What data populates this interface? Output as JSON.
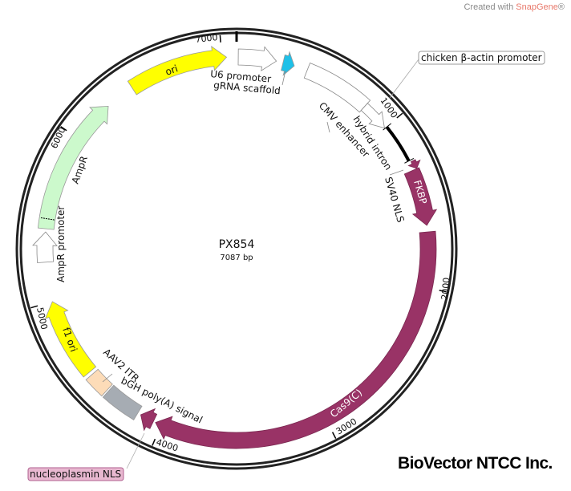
{
  "header": {
    "credit_prefix": "Created with ",
    "credit_brand": "SnapGene",
    "credit_suffix": "®"
  },
  "plasmid": {
    "name": "PX854",
    "length_label": "7087 bp",
    "length_bp": 7087
  },
  "ticks": [
    {
      "bp": 1000,
      "label": "1000"
    },
    {
      "bp": 2000,
      "label": "2000"
    },
    {
      "bp": 3000,
      "label": "3000"
    },
    {
      "bp": 4000,
      "label": "4000"
    },
    {
      "bp": 5000,
      "label": "5000"
    },
    {
      "bp": 6000,
      "label": "6000"
    },
    {
      "bp": 7000,
      "label": "7000"
    }
  ],
  "features": [
    {
      "id": "ori",
      "label": "ori",
      "start": 6437,
      "end": 7028,
      "type": "arrow",
      "color": "#ffff00"
    },
    {
      "id": "u6",
      "label": "U6 promoter",
      "start": 10,
      "end": 236,
      "type": "arrow",
      "color": "#ffffff"
    },
    {
      "id": "grna",
      "label": "gRNA scaffold",
      "start": 276,
      "end": 345,
      "type": "arrow",
      "color": "#1ec0e8"
    },
    {
      "id": "cmv",
      "label": "CMV enhancer",
      "start": 425,
      "end": 827,
      "type": "box",
      "color": "#ffffff"
    },
    {
      "id": "cba",
      "label": "chicken β-actin promoter",
      "start": 827,
      "end": 1000,
      "type": "arrow",
      "color": "#ffffff"
    },
    {
      "id": "intron",
      "label": "hybrid intron",
      "start": 1004,
      "end": 1240,
      "type": "line",
      "color": "#000000"
    },
    {
      "id": "sv40",
      "label": "SV40 NLS",
      "start": 1250,
      "end": 1299,
      "type": "arrow",
      "color": "#993366"
    },
    {
      "id": "fkbp",
      "label": "FKBP",
      "start": 1300,
      "end": 1634,
      "type": "arrow",
      "color": "#993366"
    },
    {
      "id": "cas9",
      "label": "Cas9(C)",
      "start": 1673,
      "end": 4036,
      "type": "arrow",
      "color": "#993366"
    },
    {
      "id": "npnls",
      "label": "nucleoplasmin NLS",
      "start": 4050,
      "end": 4134,
      "type": "arrow",
      "color": "#993366"
    },
    {
      "id": "bgh",
      "label": "bGH poly(A) signal",
      "start": 4154,
      "end": 4370,
      "type": "box",
      "color": "#a6acb3"
    },
    {
      "id": "aav2",
      "label": "AAV2 ITR",
      "start": 4380,
      "end": 4508,
      "type": "box",
      "color": "#fddcb8"
    },
    {
      "id": "f1ori",
      "label": "f1 ori",
      "start": 4528,
      "end": 5000,
      "type": "arrow",
      "color": "#ffff00"
    },
    {
      "id": "amppro",
      "label": "AmpR promoter",
      "start": 5236,
      "end": 5414,
      "type": "arrow",
      "color": "#ffffff"
    },
    {
      "id": "ampr",
      "label": "AmpR",
      "start": 5433,
      "end": 6260,
      "type": "arrow",
      "color": "#ccf9cc"
    }
  ],
  "footer": {
    "brand": "BioVector NTCC Inc."
  }
}
